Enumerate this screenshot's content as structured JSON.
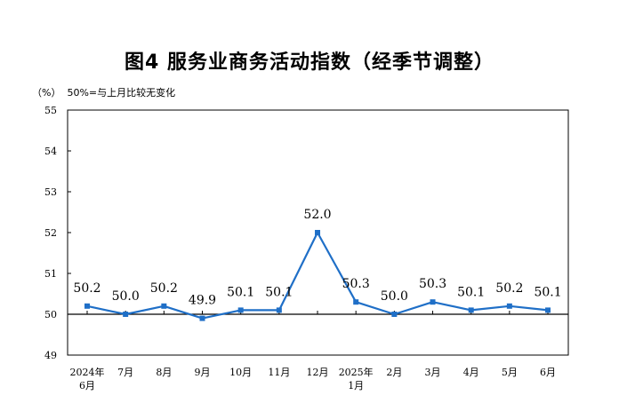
{
  "chart_data": {
    "type": "line",
    "title": "图4  服务业商务活动指数（经季节调整）",
    "unit_note": "（%）  50%=与上月比较无变化",
    "categories": [
      [
        "2024年",
        "6月"
      ],
      [
        "7月"
      ],
      [
        "8月"
      ],
      [
        "9月"
      ],
      [
        "10月"
      ],
      [
        "11月"
      ],
      [
        "12月"
      ],
      [
        "2025年",
        "1月"
      ],
      [
        "2月"
      ],
      [
        "3月"
      ],
      [
        "4月"
      ],
      [
        "5月"
      ],
      [
        "6月"
      ]
    ],
    "series": [
      {
        "values": [
          50.2,
          50.0,
          50.2,
          49.9,
          50.1,
          50.1,
          52.0,
          50.3,
          50.0,
          50.3,
          50.1,
          50.2,
          50.1
        ]
      }
    ],
    "data_labels": [
      "50.2",
      "50.0",
      "50.2",
      "49.9",
      "50.1",
      "50.1",
      "52.0",
      "50.3",
      "50.0",
      "50.3",
      "50.1",
      "50.2",
      "50.1"
    ],
    "ylim": [
      49,
      55
    ],
    "yticks": [
      49,
      50,
      51,
      52,
      53,
      54,
      55
    ],
    "reference_line": 50,
    "line_color": "#1f6fc7",
    "grid": false
  }
}
